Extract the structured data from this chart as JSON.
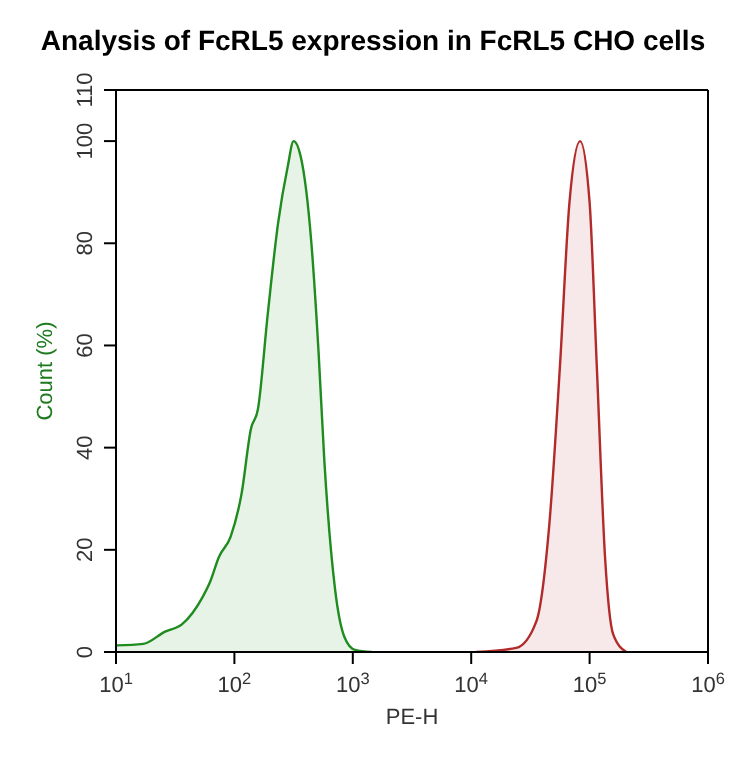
{
  "chart_data": {
    "type": "area",
    "title": "Analysis of FcRL5 expression in FcRL5 CHO cells",
    "xlabel": "PE-H",
    "ylabel": "Count (%)",
    "log": "x",
    "xlim": [
      10,
      1000000
    ],
    "xticks": [
      {
        "value": 10,
        "label": "10$^{1}$"
      },
      {
        "value": 100,
        "label": "10$^{2}$"
      },
      {
        "value": 1000,
        "label": "10$^{3}$"
      },
      {
        "value": 10000,
        "label": "10$^{4}$"
      },
      {
        "value": 100000,
        "label": "10$^{5}$"
      },
      {
        "value": 1000000,
        "label": "10$^{6}$"
      }
    ],
    "ylim": [
      0,
      110
    ],
    "yticks": [
      0,
      20,
      40,
      60,
      80,
      100,
      110
    ],
    "marker": "none",
    "line_style": "solid",
    "series": [
      {
        "color": "#1e8c1e",
        "x": [
          10,
          17,
          26,
          36,
          54,
          62,
          74,
          93,
          115,
          138,
          158,
          191,
          234,
          282,
          316,
          363,
          447,
          513,
          575,
          708,
          851,
          1047,
          1445
        ],
        "values": [
          1.3,
          1.6,
          4,
          5.4,
          10.8,
          13.6,
          18.6,
          22.6,
          31,
          43.7,
          47.5,
          66,
          84,
          95,
          100,
          97,
          80,
          59,
          37.4,
          12.3,
          2.9,
          0.4,
          0
        ]
      },
      {
        "color": "#b22a2a",
        "x": [
          11000,
          24000,
          35500,
          45700,
          56200,
          67600,
          83200,
          100000,
          115000,
          135000,
          158000,
          204000
        ],
        "values": [
          0,
          0.8,
          6,
          25,
          56,
          88,
          100,
          88,
          56,
          18.6,
          3.5,
          0
        ]
      }
    ]
  }
}
